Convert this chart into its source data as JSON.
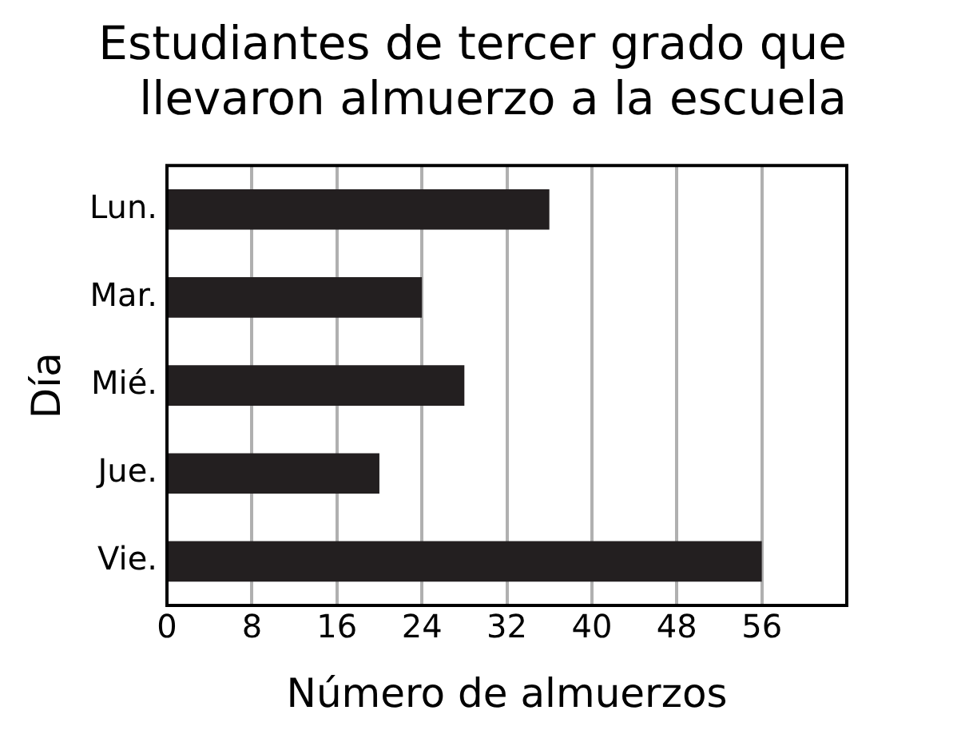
{
  "chart_data": {
    "type": "bar",
    "orientation": "horizontal",
    "title": "Estudiantes de tercer grado que llevaron almuerzo a la escuela",
    "xlabel": "Número de almuerzos",
    "ylabel": "Día",
    "categories": [
      "Lun.",
      "Mar.",
      "Mié.",
      "Jue.",
      "Vie."
    ],
    "values": [
      36,
      24,
      28,
      20,
      56
    ],
    "color": "#231f20",
    "xlim": [
      0,
      64
    ],
    "xticks": [
      0,
      8,
      16,
      24,
      32,
      40,
      48,
      56
    ],
    "grid": "x",
    "legend": false
  }
}
